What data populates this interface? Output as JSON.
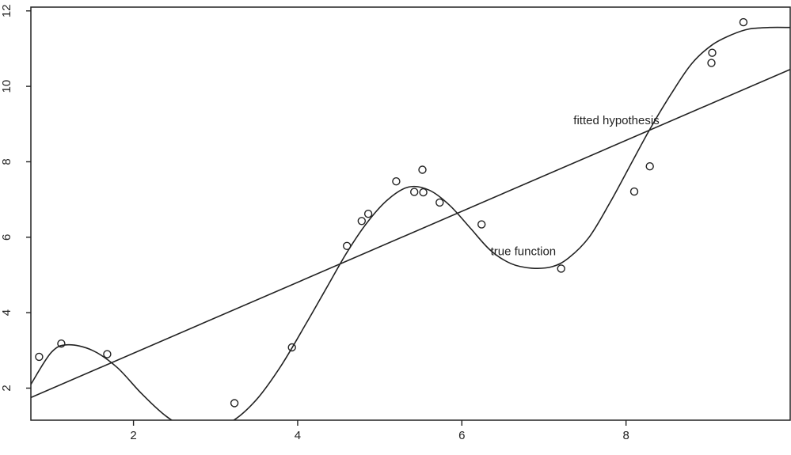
{
  "chart_data": {
    "type": "scatter",
    "title": "",
    "xlabel": "",
    "ylabel": "",
    "xlim": [
      0.75,
      10.0
    ],
    "ylim": [
      1.15,
      12.1
    ],
    "x_ticks": [
      2,
      4,
      6,
      8
    ],
    "y_ticks": [
      2,
      4,
      6,
      8,
      10,
      12
    ],
    "grid": false,
    "points": [
      {
        "x": 0.85,
        "y": 2.83
      },
      {
        "x": 1.12,
        "y": 3.18
      },
      {
        "x": 1.68,
        "y": 2.9
      },
      {
        "x": 3.23,
        "y": 1.6
      },
      {
        "x": 3.93,
        "y": 3.08
      },
      {
        "x": 4.6,
        "y": 5.77
      },
      {
        "x": 4.78,
        "y": 6.43
      },
      {
        "x": 4.86,
        "y": 6.62
      },
      {
        "x": 5.2,
        "y": 7.48
      },
      {
        "x": 5.42,
        "y": 7.2
      },
      {
        "x": 5.52,
        "y": 7.79
      },
      {
        "x": 5.53,
        "y": 7.19
      },
      {
        "x": 5.73,
        "y": 6.92
      },
      {
        "x": 6.24,
        "y": 6.34
      },
      {
        "x": 7.21,
        "y": 5.17
      },
      {
        "x": 8.1,
        "y": 7.21
      },
      {
        "x": 8.29,
        "y": 7.88
      },
      {
        "x": 9.04,
        "y": 10.62
      },
      {
        "x": 9.05,
        "y": 10.89
      },
      {
        "x": 9.43,
        "y": 11.7
      }
    ],
    "fitted_line": {
      "x": [
        0.75,
        10.0
      ],
      "y": [
        1.75,
        10.45
      ]
    },
    "true_function": {
      "x": [
        0.75,
        1.0,
        1.2,
        1.5,
        1.8,
        2.1,
        2.4,
        2.65,
        2.9,
        3.2,
        3.5,
        3.8,
        4.1,
        4.35,
        4.6,
        4.85,
        5.1,
        5.35,
        5.6,
        5.85,
        6.1,
        6.35,
        6.6,
        6.85,
        7.1,
        7.3,
        7.55,
        7.8,
        8.05,
        8.3,
        8.55,
        8.8,
        9.05,
        9.3,
        9.5,
        9.75,
        10.0
      ],
      "y": [
        2.1,
        2.95,
        3.15,
        3.0,
        2.55,
        1.85,
        1.25,
        0.95,
        0.92,
        1.12,
        1.7,
        2.6,
        3.7,
        4.65,
        5.6,
        6.4,
        7.0,
        7.33,
        7.25,
        6.85,
        6.25,
        5.65,
        5.3,
        5.18,
        5.22,
        5.45,
        6.0,
        6.9,
        7.9,
        8.9,
        9.8,
        10.6,
        11.1,
        11.38,
        11.52,
        11.56,
        11.56
      ]
    },
    "annotations": [
      {
        "text": "fitted hypothesis",
        "x": 7.36,
        "y": 9.0
      },
      {
        "text": "true function",
        "x": 6.35,
        "y": 5.52
      }
    ]
  }
}
